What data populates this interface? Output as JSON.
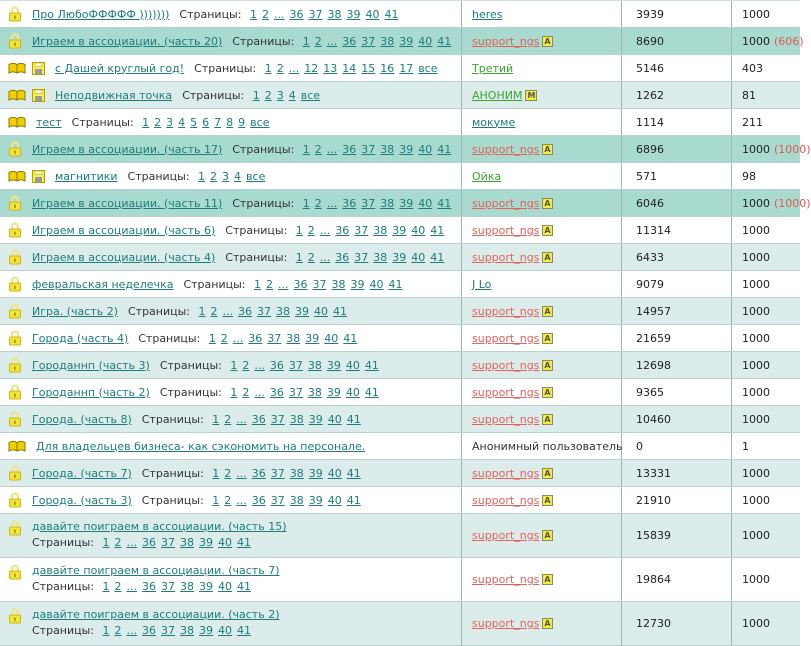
{
  "labels": {
    "pages_label": "Страницы:"
  },
  "colors": {
    "hot_row_bg": "#a9dacf",
    "alt_row_bg": "#dbecea",
    "row_border": "#b9d2d0",
    "column_border": "#a0b4b4",
    "link_teal": "#1e7c7c",
    "link_red": "#e2625c",
    "link_green": "#3da331",
    "count_note_red": "#e25752",
    "badge_bg": "#f2eb42",
    "icon_yellow": "#f2e43c"
  },
  "icon_legend": {
    "lock-icon": "locked topic padlock",
    "book-icon": "open book topic marker",
    "disk-icon": "saved/attachment marker",
    "author-badge-icon": "profile note badge"
  },
  "rows": [
    {
      "icons": [
        "lock"
      ],
      "title": "Про ЛюбоФФФФФ )))))))",
      "pages": [
        "1",
        "2",
        "...",
        "36",
        "37",
        "38",
        "39",
        "40",
        "41"
      ],
      "author": "heres",
      "author_style": "teal",
      "author_link": true,
      "author_badge": null,
      "views": "3939",
      "replies": "1000",
      "replies_note": null,
      "bg": "white",
      "two_line": false
    },
    {
      "icons": [
        "lock"
      ],
      "title": "Играем в ассоциации. (часть 20)",
      "pages": [
        "1",
        "2",
        "...",
        "36",
        "37",
        "38",
        "39",
        "40",
        "41"
      ],
      "author": "support_ngs",
      "author_style": "red",
      "author_link": true,
      "author_badge": "A",
      "views": "8690",
      "replies": "1000",
      "replies_note": "(606)",
      "bg": "hot",
      "two_line": false
    },
    {
      "icons": [
        "book",
        "disk"
      ],
      "title": "с Дашей круглый год!",
      "pages": [
        "1",
        "2",
        "...",
        "12",
        "13",
        "14",
        "15",
        "16",
        "17",
        "все"
      ],
      "author": "Третий",
      "author_style": "green",
      "author_link": true,
      "author_badge": null,
      "views": "5146",
      "replies": "403",
      "replies_note": null,
      "bg": "white",
      "two_line": false
    },
    {
      "icons": [
        "book",
        "disk"
      ],
      "title": "Неподвижная точка",
      "pages": [
        "1",
        "2",
        "3",
        "4",
        "все"
      ],
      "author": "АНОНИМ",
      "author_style": "green",
      "author_link": true,
      "author_badge": "М",
      "views": "1262",
      "replies": "81",
      "replies_note": null,
      "bg": "alt",
      "two_line": false
    },
    {
      "icons": [
        "book"
      ],
      "title": "тест",
      "pages": [
        "1",
        "2",
        "3",
        "4",
        "5",
        "6",
        "7",
        "8",
        "9",
        "все"
      ],
      "author": "мокуме",
      "author_style": "teal",
      "author_link": true,
      "author_badge": null,
      "views": "1114",
      "replies": "211",
      "replies_note": null,
      "bg": "white",
      "two_line": false
    },
    {
      "icons": [
        "lock"
      ],
      "title": "Играем в ассоциации. (часть 17)",
      "pages": [
        "1",
        "2",
        "...",
        "36",
        "37",
        "38",
        "39",
        "40",
        "41"
      ],
      "author": "support_ngs",
      "author_style": "red",
      "author_link": true,
      "author_badge": "A",
      "views": "6896",
      "replies": "1000",
      "replies_note": "(1000)",
      "bg": "hot",
      "two_line": false
    },
    {
      "icons": [
        "book",
        "disk"
      ],
      "title": "магнитики",
      "pages": [
        "1",
        "2",
        "3",
        "4",
        "все"
      ],
      "author": "Ойка",
      "author_style": "green",
      "author_link": true,
      "author_badge": null,
      "views": "571",
      "replies": "98",
      "replies_note": null,
      "bg": "white",
      "two_line": false
    },
    {
      "icons": [
        "lock"
      ],
      "title": "Играем в ассоциации. (часть 11)",
      "pages": [
        "1",
        "2",
        "...",
        "36",
        "37",
        "38",
        "39",
        "40",
        "41"
      ],
      "author": "support_ngs",
      "author_style": "red",
      "author_link": true,
      "author_badge": "A",
      "views": "6046",
      "replies": "1000",
      "replies_note": "(1000)",
      "bg": "hot",
      "two_line": false
    },
    {
      "icons": [
        "lock"
      ],
      "title": "Играем в ассоциации. (часть 6)",
      "pages": [
        "1",
        "2",
        "...",
        "36",
        "37",
        "38",
        "39",
        "40",
        "41"
      ],
      "author": "support_ngs",
      "author_style": "red",
      "author_link": true,
      "author_badge": "A",
      "views": "11314",
      "replies": "1000",
      "replies_note": null,
      "bg": "white",
      "two_line": false
    },
    {
      "icons": [
        "lock"
      ],
      "title": "Играем в ассоциации. (часть 4)",
      "pages": [
        "1",
        "2",
        "...",
        "36",
        "37",
        "38",
        "39",
        "40",
        "41"
      ],
      "author": "support_ngs",
      "author_style": "red",
      "author_link": true,
      "author_badge": "A",
      "views": "6433",
      "replies": "1000",
      "replies_note": null,
      "bg": "alt",
      "two_line": false
    },
    {
      "icons": [
        "lock"
      ],
      "title": "февральская неделечка",
      "pages": [
        "1",
        "2",
        "...",
        "36",
        "37",
        "38",
        "39",
        "40",
        "41"
      ],
      "author": "J Lo",
      "author_style": "teal",
      "author_link": true,
      "author_badge": null,
      "views": "9079",
      "replies": "1000",
      "replies_note": null,
      "bg": "white",
      "two_line": false
    },
    {
      "icons": [
        "lock"
      ],
      "title": "Игра. (часть 2)",
      "pages": [
        "1",
        "2",
        "...",
        "36",
        "37",
        "38",
        "39",
        "40",
        "41"
      ],
      "author": "support_ngs",
      "author_style": "red",
      "author_link": true,
      "author_badge": "A",
      "views": "14957",
      "replies": "1000",
      "replies_note": null,
      "bg": "alt",
      "two_line": false
    },
    {
      "icons": [
        "lock"
      ],
      "title": "Города (часть 4)",
      "pages": [
        "1",
        "2",
        "...",
        "36",
        "37",
        "38",
        "39",
        "40",
        "41"
      ],
      "author": "support_ngs",
      "author_style": "red",
      "author_link": true,
      "author_badge": "A",
      "views": "21659",
      "replies": "1000",
      "replies_note": null,
      "bg": "white",
      "two_line": false
    },
    {
      "icons": [
        "lock"
      ],
      "title": "Городаннп (часть 3)",
      "pages": [
        "1",
        "2",
        "...",
        "36",
        "37",
        "38",
        "39",
        "40",
        "41"
      ],
      "author": "support_ngs",
      "author_style": "red",
      "author_link": true,
      "author_badge": "A",
      "views": "12698",
      "replies": "1000",
      "replies_note": null,
      "bg": "alt",
      "two_line": false
    },
    {
      "icons": [
        "lock"
      ],
      "title": "Городаннп (часть 2)",
      "pages": [
        "1",
        "2",
        "...",
        "36",
        "37",
        "38",
        "39",
        "40",
        "41"
      ],
      "author": "support_ngs",
      "author_style": "red",
      "author_link": true,
      "author_badge": "A",
      "views": "9365",
      "replies": "1000",
      "replies_note": null,
      "bg": "white",
      "two_line": false
    },
    {
      "icons": [
        "lock"
      ],
      "title": "Города. (часть 8)",
      "pages": [
        "1",
        "2",
        "...",
        "36",
        "37",
        "38",
        "39",
        "40",
        "41"
      ],
      "author": "support_ngs",
      "author_style": "red",
      "author_link": true,
      "author_badge": "A",
      "views": "10460",
      "replies": "1000",
      "replies_note": null,
      "bg": "alt",
      "two_line": false
    },
    {
      "icons": [
        "book"
      ],
      "title": "Для владельцев бизнеса- как сэкономить на персонале.",
      "pages": [],
      "author": "Анонимный пользователь",
      "author_style": "plain",
      "author_link": false,
      "author_badge": null,
      "views": "0",
      "replies": "1",
      "replies_note": null,
      "bg": "white",
      "two_line": false
    },
    {
      "icons": [
        "lock"
      ],
      "title": "Города. (часть 7)",
      "pages": [
        "1",
        "2",
        "...",
        "36",
        "37",
        "38",
        "39",
        "40",
        "41"
      ],
      "author": "support_ngs",
      "author_style": "red",
      "author_link": true,
      "author_badge": "A",
      "views": "13331",
      "replies": "1000",
      "replies_note": null,
      "bg": "alt",
      "two_line": false
    },
    {
      "icons": [
        "lock"
      ],
      "title": "Города. (часть 3)",
      "pages": [
        "1",
        "2",
        "...",
        "36",
        "37",
        "38",
        "39",
        "40",
        "41"
      ],
      "author": "support_ngs",
      "author_style": "red",
      "author_link": true,
      "author_badge": "A",
      "views": "21910",
      "replies": "1000",
      "replies_note": null,
      "bg": "white",
      "two_line": false
    },
    {
      "icons": [
        "lock"
      ],
      "title": "давайте поиграем в ассоциации. (часть 15)",
      "pages": [
        "1",
        "2",
        "...",
        "36",
        "37",
        "38",
        "39",
        "40",
        "41"
      ],
      "author": "support_ngs",
      "author_style": "red",
      "author_link": true,
      "author_badge": "A",
      "views": "15839",
      "replies": "1000",
      "replies_note": null,
      "bg": "alt",
      "two_line": true
    },
    {
      "icons": [
        "lock"
      ],
      "title": "давайте поиграем в ассоциации. (часть 7)",
      "pages": [
        "1",
        "2",
        "...",
        "36",
        "37",
        "38",
        "39",
        "40",
        "41"
      ],
      "author": "support_ngs",
      "author_style": "red",
      "author_link": true,
      "author_badge": "A",
      "views": "19864",
      "replies": "1000",
      "replies_note": null,
      "bg": "white",
      "two_line": true
    },
    {
      "icons": [
        "lock"
      ],
      "title": "давайте поиграем в ассоциации. (часть 2)",
      "pages": [
        "1",
        "2",
        "...",
        "36",
        "37",
        "38",
        "39",
        "40",
        "41"
      ],
      "author": "support_ngs",
      "author_style": "red",
      "author_link": true,
      "author_badge": "A",
      "views": "12730",
      "replies": "1000",
      "replies_note": null,
      "bg": "alt",
      "two_line": true
    }
  ]
}
